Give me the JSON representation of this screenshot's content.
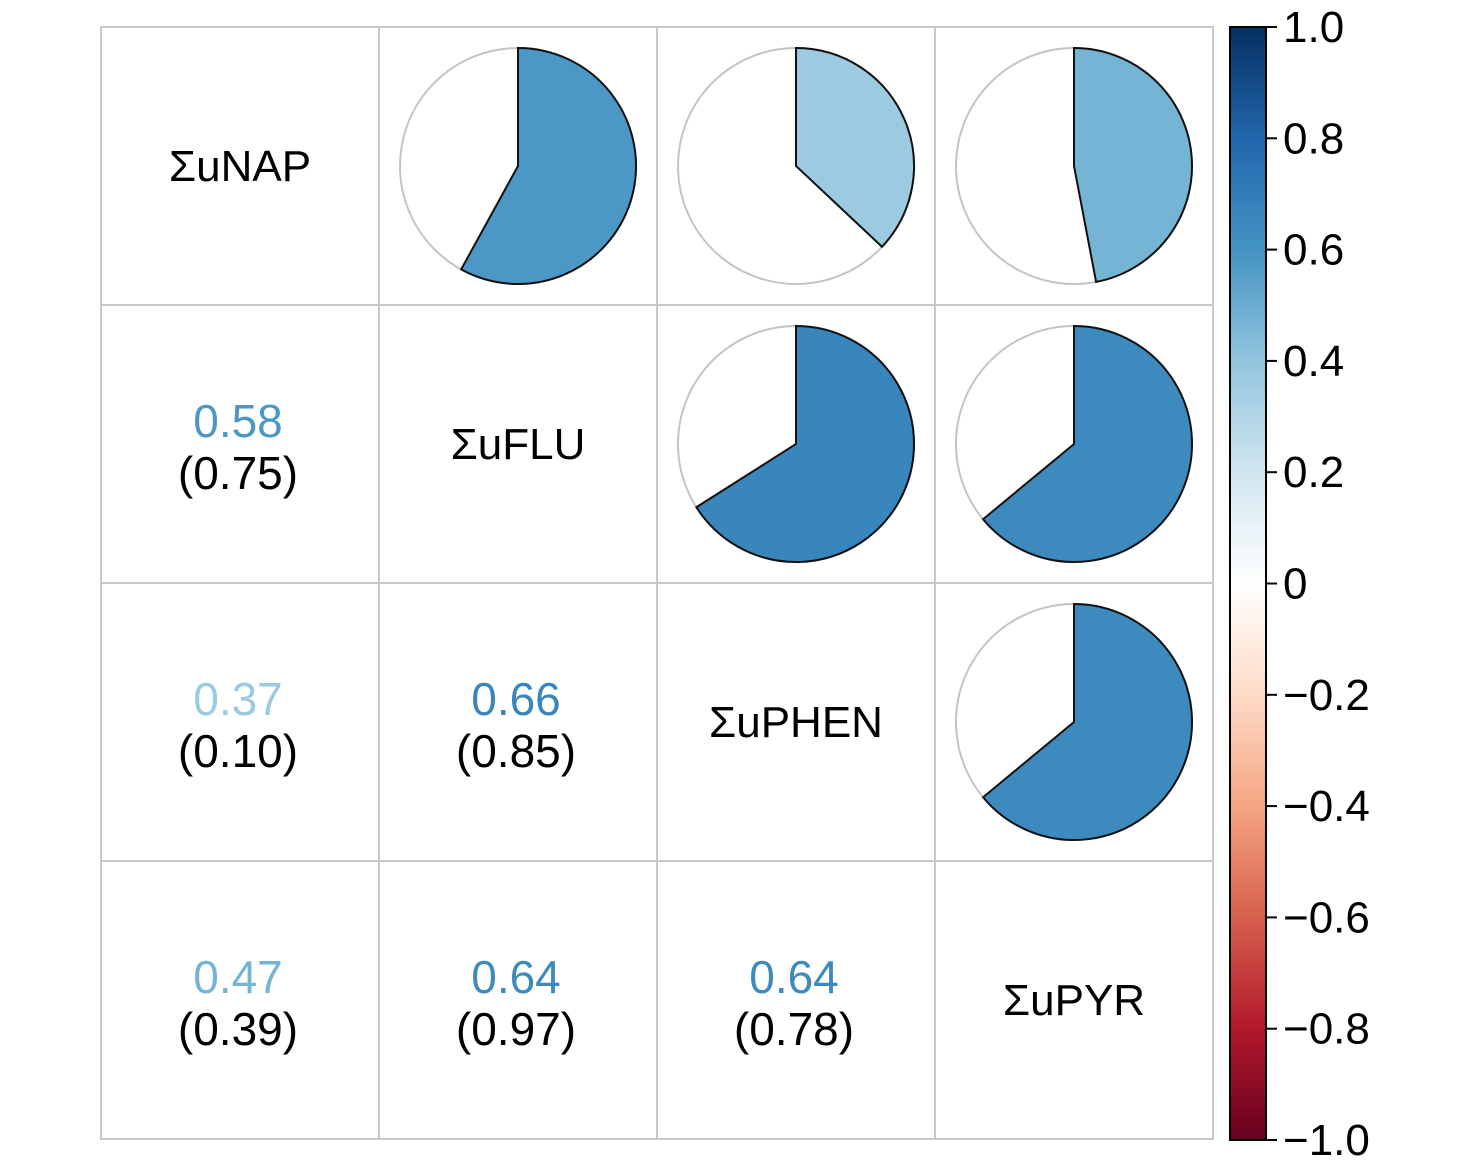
{
  "chart_data": {
    "type": "heatmap",
    "title": "",
    "variables": [
      "ΣuNAP",
      "ΣuFLU",
      "ΣuPHEN",
      "ΣuPYR"
    ],
    "upper_triangle_glyph": "pie",
    "lower_triangle_glyph": "number",
    "correlations": [
      {
        "row": "ΣuFLU",
        "col": "ΣuNAP",
        "r": 0.58,
        "r_label": "0.58",
        "p_label": "(0.75)"
      },
      {
        "row": "ΣuPHEN",
        "col": "ΣuNAP",
        "r": 0.37,
        "r_label": "0.37",
        "p_label": "(0.10)"
      },
      {
        "row": "ΣuPHEN",
        "col": "ΣuFLU",
        "r": 0.66,
        "r_label": "0.66",
        "p_label": "(0.85)"
      },
      {
        "row": "ΣuPYR",
        "col": "ΣuNAP",
        "r": 0.47,
        "r_label": "0.47",
        "p_label": "(0.39)"
      },
      {
        "row": "ΣuPYR",
        "col": "ΣuFLU",
        "r": 0.64,
        "r_label": "0.64",
        "p_label": "(0.97)"
      },
      {
        "row": "ΣuPYR",
        "col": "ΣuPHEN",
        "r": 0.64,
        "r_label": "0.64",
        "p_label": "(0.78)"
      }
    ],
    "colorbar": {
      "range": [
        -1.0,
        1.0
      ],
      "ticks": [
        1.0,
        0.8,
        0.6,
        0.4,
        0.2,
        0,
        -0.2,
        -0.4,
        -0.6,
        -0.8,
        -1.0
      ],
      "tick_labels": [
        "1.0",
        "0.8",
        "0.6",
        "0.4",
        "0.2",
        "0",
        "−0.2",
        "−0.4",
        "−0.6",
        "−0.8",
        "−1.0"
      ],
      "colormap": "RdBu",
      "stops": [
        {
          "v": -1.0,
          "color": "#67001f"
        },
        {
          "v": -0.8,
          "color": "#b2182b"
        },
        {
          "v": -0.6,
          "color": "#d6604d"
        },
        {
          "v": -0.4,
          "color": "#f4a582"
        },
        {
          "v": -0.2,
          "color": "#fddbc7"
        },
        {
          "v": 0.0,
          "color": "#ffffff"
        },
        {
          "v": 0.2,
          "color": "#d1e5f0"
        },
        {
          "v": 0.4,
          "color": "#92c5de"
        },
        {
          "v": 0.6,
          "color": "#4393c3"
        },
        {
          "v": 0.8,
          "color": "#2166ac"
        },
        {
          "v": 1.0,
          "color": "#053061"
        }
      ]
    }
  }
}
